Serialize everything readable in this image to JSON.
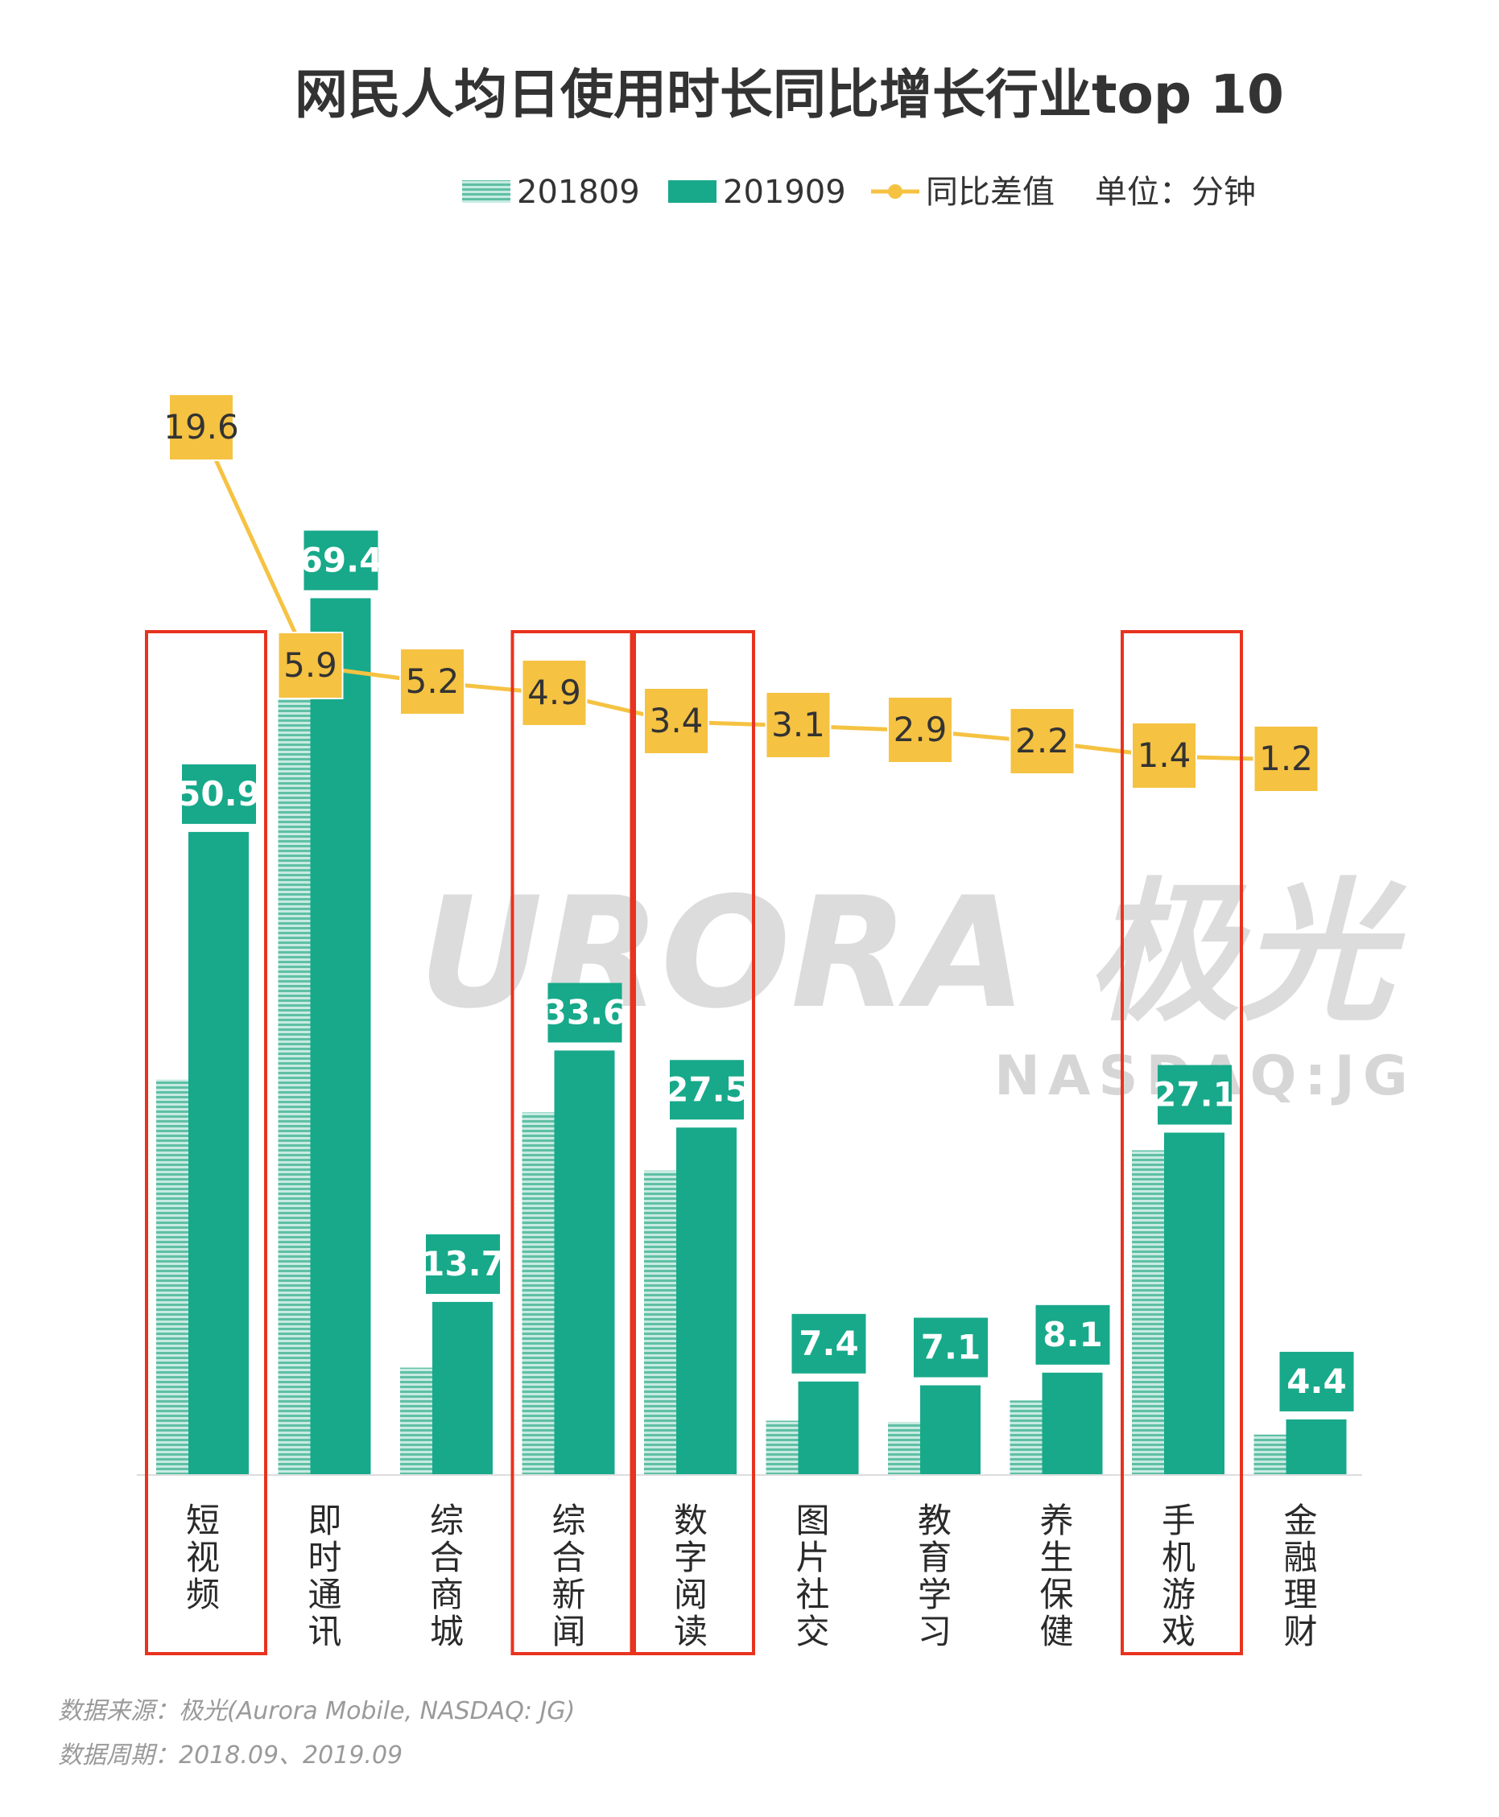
{
  "chart_data": {
    "type": "bar",
    "title": "网民人均日使用时长同比增长行业top  10",
    "unit_label": "单位：分钟",
    "legend_position": "top-right",
    "categories": [
      "短视频",
      "即时通讯",
      "综合商城",
      "综合新闻",
      "数字阅读",
      "图片社交",
      "教育学习",
      "养生保健",
      "手机游戏",
      "金融理财"
    ],
    "series": [
      {
        "name": "201809",
        "type": "bar",
        "style": "striped",
        "values": [
          31.3,
          63.5,
          8.5,
          28.7,
          24.1,
          4.3,
          4.2,
          5.9,
          25.7,
          3.2
        ]
      },
      {
        "name": "201909",
        "type": "bar",
        "style": "solid",
        "values": [
          50.9,
          69.4,
          13.7,
          33.6,
          27.5,
          7.4,
          7.1,
          8.1,
          27.1,
          4.4
        ]
      },
      {
        "name": "同比差值",
        "type": "line",
        "values": [
          19.6,
          5.9,
          5.2,
          4.9,
          3.4,
          3.1,
          2.9,
          2.2,
          1.4,
          1.2
        ]
      }
    ],
    "highlighted_categories": [
      "短视频",
      "综合新闻",
      "数字阅读",
      "手机游戏"
    ],
    "colors": {
      "bar_2018": "#8fd1c0",
      "bar_2019": "#17a98a",
      "line": "#f5c242",
      "highlight_box": "#e8331f"
    }
  },
  "watermark": {
    "brand": "URORA",
    "brand_cn": "极光",
    "ticker": "NASDAQ:JG"
  },
  "footer": {
    "source": "数据来源：极光(Aurora  Mobile, NASDAQ: JG)",
    "period": "数据周期：2018.09、2019.09"
  }
}
